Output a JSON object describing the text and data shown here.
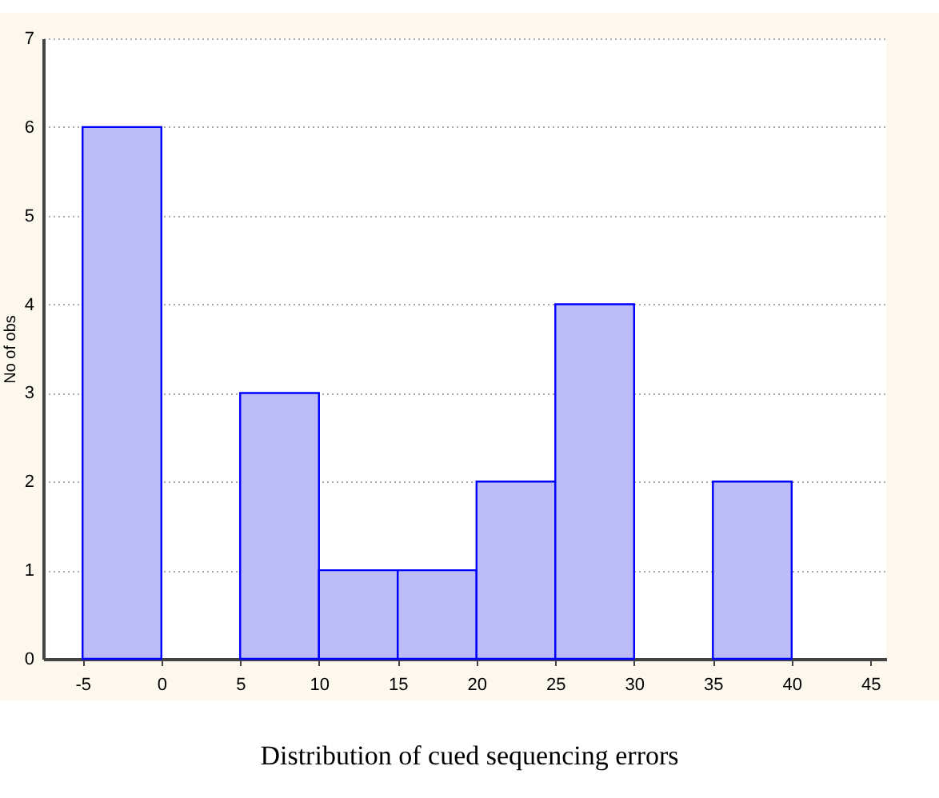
{
  "chart_data": {
    "type": "histogram",
    "title": "Distribution of cued sequencing errors",
    "ylabel": "No of obs",
    "bins": [
      -5,
      0,
      5,
      10,
      15,
      20,
      25,
      30,
      35,
      40,
      45
    ],
    "values": [
      6,
      0,
      3,
      1,
      1,
      2,
      4,
      0,
      2,
      0
    ],
    "color": "#bcbcf8",
    "xlim": [
      -7.5,
      46
    ],
    "xticks": [
      -5,
      0,
      5,
      10,
      15,
      20,
      25,
      30,
      35,
      40,
      45
    ],
    "ylim": [
      0,
      7
    ],
    "yticks": [
      0,
      1,
      2,
      3,
      4,
      5,
      6,
      7
    ],
    "grid": "y"
  }
}
